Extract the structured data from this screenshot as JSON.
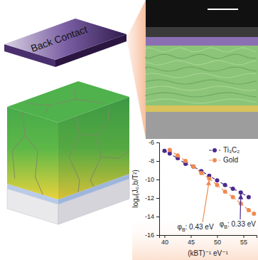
{
  "schematic": {
    "label": "Back Contact"
  },
  "chart_data": {
    "type": "line",
    "x": [
      40,
      41,
      42.5,
      44,
      45.5,
      47,
      48.5,
      50,
      51.5,
      53,
      54.5,
      56,
      57
    ],
    "series": [
      {
        "name": "Ti₃C₂",
        "color": "#4b2a8c",
        "marker": "circle",
        "line_style": "dashed",
        "values": [
          -6.9,
          -7.2,
          -7.7,
          -8.3,
          -8.6,
          -9.1,
          -9.6,
          -10.1,
          -10.6,
          -11.0,
          -11.4,
          -11.9,
          null
        ]
      },
      {
        "name": "Gold",
        "color": "#f08a50",
        "marker": "circle",
        "line_style": "dashed",
        "values": [
          null,
          -6.8,
          -7.4,
          -8.0,
          -8.6,
          -9.3,
          -9.9,
          -10.6,
          -11.3,
          -11.9,
          -12.6,
          -13.3,
          -13.7
        ]
      }
    ],
    "x_label": "(kBT)⁻¹ eV⁻¹",
    "y_label": "logₑ(J₀,b/T²)",
    "xlim": [
      39,
      57.5
    ],
    "ylim": [
      -16,
      -6
    ],
    "xticks": [
      40,
      45,
      50,
      55
    ],
    "yticks": [
      -6,
      -8,
      -10,
      -12,
      -14,
      -16
    ],
    "annotations": [
      "φB: 0.33 eV",
      "φB: 0.43 eV"
    ],
    "legend": "upper right"
  }
}
